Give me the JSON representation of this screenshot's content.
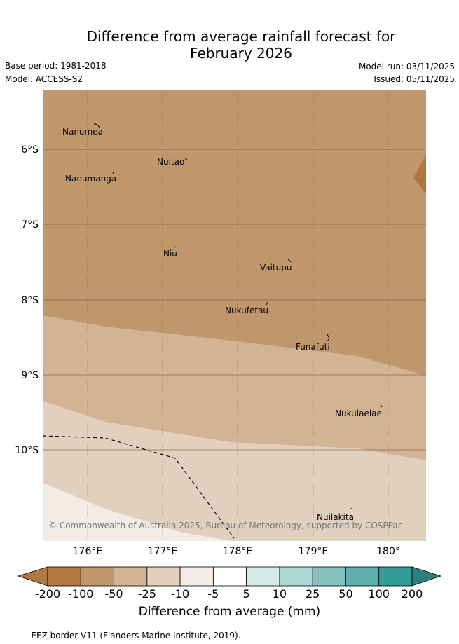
{
  "title_line1": "Difference from average rainfall forecast for",
  "title_line2": "February 2026",
  "base_period": "Base period: 1981-2018",
  "model": "Model: ACCESS-S2",
  "model_run": "Model run: 03/11/2025",
  "issued": "Issued: 05/11/2025",
  "copyright": "© Commonwealth of Australia 2025, Bureau of Meteorology, supported by COSPPac",
  "lat_labels": [
    "6°S",
    "7°S",
    "8°S",
    "9°S",
    "10°S"
  ],
  "lon_labels": [
    "176°E",
    "177°E",
    "178°E",
    "179°E",
    "180°"
  ],
  "places": [
    "Nanumea",
    "Nuitao",
    "Nanumanga",
    "Niu",
    "Vaitupu",
    "Nukufetau",
    "Funafuti",
    "Nukulaelae",
    "Nuilakita"
  ],
  "colorbar": {
    "labels": [
      "-200",
      "-100",
      "-50",
      "-25",
      "-10",
      "-5",
      "5",
      "10",
      "25",
      "50",
      "100",
      "200"
    ],
    "colors": [
      "#b07840",
      "#c0966c",
      "#d2b393",
      "#e2d0be",
      "#f3ece6",
      "#ffffff",
      "#d4ebea",
      "#acd7d5",
      "#86c2c0",
      "#5daeac",
      "#339b98",
      "#2c7f7d"
    ],
    "over_color": "#2c7f7d",
    "title": "Difference from average (mm)"
  },
  "legend_line": "--  --  -- EEZ border V11 (Flanders Marine Institute, 2019)."
}
